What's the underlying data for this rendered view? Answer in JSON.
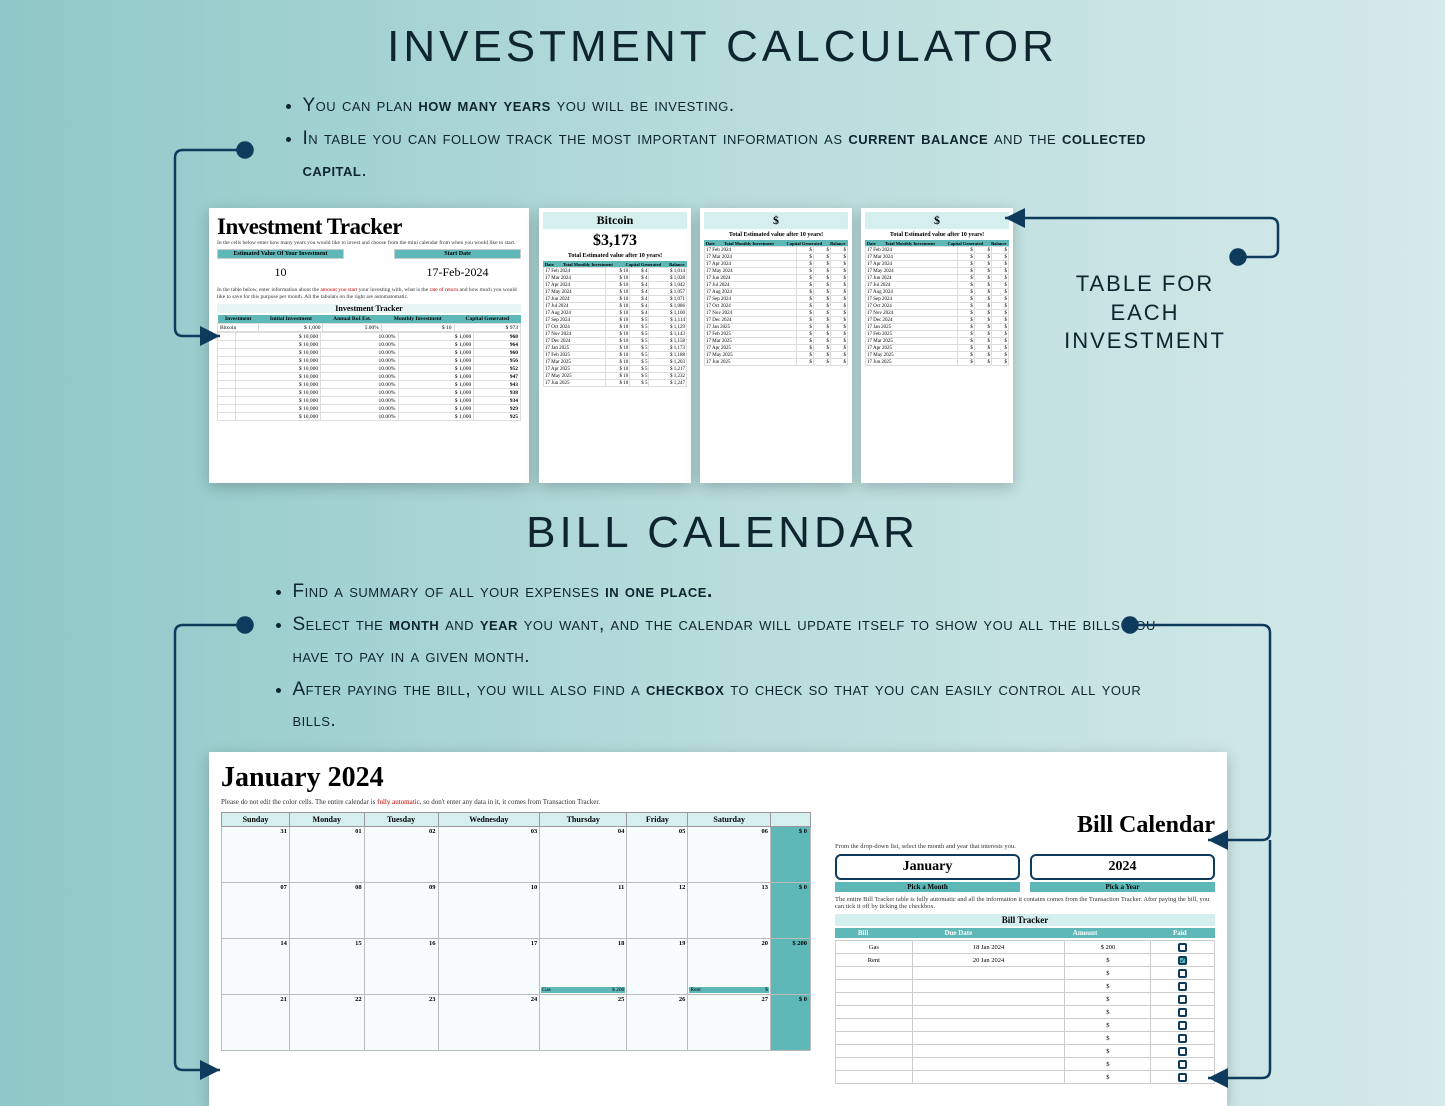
{
  "titles": {
    "investment": "INVESTMENT CALCULATOR",
    "bill": "BILL CALENDAR"
  },
  "bullets_inv": {
    "b1a": "You can plan ",
    "b1b": "how many years",
    "b1c": " you will be investing.",
    "b2a": "In table you can follow track the most important information as ",
    "b2b": "current balance",
    "b2c": " and the ",
    "b2d": "collected capital",
    "b2e": "."
  },
  "bullets_bill": {
    "b1a": "Find a summary of all your expenses ",
    "b1b": "in one place.",
    "b2a": "Select the ",
    "b2b": "month",
    "b2c": " and ",
    "b2d": "year",
    "b2e": " you want, and the calendar will update itself to show you all the bills you have to pay in a given month.",
    "b3a": "After paying the bill, you will also find a ",
    "b3b": "checkbox",
    "b3c": " to check so that you can easily control all your bills."
  },
  "side_label": {
    "l1": "TABLE FOR",
    "l2": "EACH",
    "l3": "INVESTMENT"
  },
  "tracker": {
    "title": "Investment Tracker",
    "desc": "In the cells below enter how many years you would like to invest and choose from the mini calendar from when you would like to start.",
    "est_label": "Estimated Value Of Your Investment",
    "start_label": "Start Date",
    "years": "10",
    "date": "17-Feb-2024",
    "desc2a": "In the table below, enter information about the ",
    "desc2_amount": "amount you start",
    "desc2b": " your investing with, what is the ",
    "desc2_rate": "rate of return",
    "desc2c": " and how much you would like to save for this purpose per month. All the tabulars on the right are automatomatic.",
    "subtitle": "Investment Tracker",
    "headers": {
      "c1": "Investment",
      "c2": "Initial Investment",
      "c3": "Annual RoI Est.",
      "c4": "Monthly Investment",
      "c5": "Capital Generated"
    },
    "row0": {
      "name": "Bitcoin",
      "init": "$   1,000",
      "roi": "5.00%",
      "mon": "$   10",
      "cap": "$   973"
    },
    "rows": [
      {
        "init": "$   10,000",
        "roi": "10.00%",
        "mon": "$   1,000",
        "cap": "968"
      },
      {
        "init": "$   10,000",
        "roi": "10.00%",
        "mon": "$   1,000",
        "cap": "964"
      },
      {
        "init": "$   10,000",
        "roi": "10.00%",
        "mon": "$   1,000",
        "cap": "960"
      },
      {
        "init": "$   10,000",
        "roi": "10.00%",
        "mon": "$   1,000",
        "cap": "956"
      },
      {
        "init": "$   10,000",
        "roi": "10.00%",
        "mon": "$   1,000",
        "cap": "952"
      },
      {
        "init": "$   10,000",
        "roi": "10.00%",
        "mon": "$   1,000",
        "cap": "947"
      },
      {
        "init": "$   10,000",
        "roi": "10.00%",
        "mon": "$   1,000",
        "cap": "943"
      },
      {
        "init": "$   10,000",
        "roi": "10.00%",
        "mon": "$   1,000",
        "cap": "938"
      },
      {
        "init": "$   10,000",
        "roi": "10.00%",
        "mon": "$   1,000",
        "cap": "934"
      },
      {
        "init": "$   10,000",
        "roi": "10.00%",
        "mon": "$   1,000",
        "cap": "929"
      },
      {
        "init": "$   10,000",
        "roi": "10.00%",
        "mon": "$   1,000",
        "cap": "925"
      }
    ]
  },
  "cards": {
    "title1": "Bitcoin",
    "val1": "$3,173",
    "title2": "$",
    "val2": "",
    "title3": "$",
    "val3": "",
    "est": "Total Estimated value after 10 years!",
    "hd": {
      "c1": "Date",
      "c2": "Total Monthly Investment",
      "c3": "Capital Generated",
      "c4": "Balance"
    },
    "rows1": [
      {
        "d": "17 Feb 2024",
        "a": "$   10",
        "b": "$   4",
        "c": "$   1,014"
      },
      {
        "d": "17 Mar 2024",
        "a": "$   10",
        "b": "$   4",
        "c": "$   1,028"
      },
      {
        "d": "17 Apr 2024",
        "a": "$   10",
        "b": "$   4",
        "c": "$   1,042"
      },
      {
        "d": "17 May 2024",
        "a": "$   10",
        "b": "$   4",
        "c": "$   1,057"
      },
      {
        "d": "17 Jun 2024",
        "a": "$   10",
        "b": "$   4",
        "c": "$   1,071"
      },
      {
        "d": "17 Jul 2024",
        "a": "$   10",
        "b": "$   4",
        "c": "$   1,086"
      },
      {
        "d": "17 Aug 2024",
        "a": "$   10",
        "b": "$   4",
        "c": "$   1,100"
      },
      {
        "d": "17 Sep 2024",
        "a": "$   10",
        "b": "$   5",
        "c": "$   1,114"
      },
      {
        "d": "17 Oct 2024",
        "a": "$   10",
        "b": "$   5",
        "c": "$   1,129"
      },
      {
        "d": "17 Nov 2024",
        "a": "$   10",
        "b": "$   5",
        "c": "$   1,143"
      },
      {
        "d": "17 Dec 2024",
        "a": "$   10",
        "b": "$   5",
        "c": "$   1,158"
      },
      {
        "d": "17 Jan 2025",
        "a": "$   10",
        "b": "$   5",
        "c": "$   1,173"
      },
      {
        "d": "17 Feb 2025",
        "a": "$   10",
        "b": "$   5",
        "c": "$   1,188"
      },
      {
        "d": "17 Mar 2025",
        "a": "$   10",
        "b": "$   5",
        "c": "$   1,203"
      },
      {
        "d": "17 Apr 2025",
        "a": "$   10",
        "b": "$   5",
        "c": "$   1,217"
      },
      {
        "d": "17 May 2025",
        "a": "$   10",
        "b": "$   5",
        "c": "$   1,232"
      },
      {
        "d": "17 Jun 2025",
        "a": "$   10",
        "b": "$   5",
        "c": "$   1,247"
      }
    ],
    "rows_empty": [
      {
        "d": "17 Feb 2024"
      },
      {
        "d": "17 Mar 2024"
      },
      {
        "d": "17 Apr 2024"
      },
      {
        "d": "17 May 2024"
      },
      {
        "d": "17 Jun 2024"
      },
      {
        "d": "17 Jul 2024"
      },
      {
        "d": "17 Aug 2024"
      },
      {
        "d": "17 Sep 2024"
      },
      {
        "d": "17 Oct 2024"
      },
      {
        "d": "17 Nov 2024"
      },
      {
        "d": "17 Dec 2024"
      },
      {
        "d": "17 Jan 2025"
      },
      {
        "d": "17 Feb 2025"
      },
      {
        "d": "17 Mar 2025"
      },
      {
        "d": "17 Apr 2025"
      },
      {
        "d": "17 May 2025"
      },
      {
        "d": "17 Jun 2025"
      }
    ]
  },
  "calendar": {
    "title": "January 2024",
    "sm_a": "Please do not edit the color cells. The entire calendar is ",
    "sm_b": "fully automatic",
    "sm_c": ", so don't enter any data in it, it comes from Transaction Tracker.",
    "days": {
      "d0": "Sunday",
      "d1": "Monday",
      "d2": "Tuesday",
      "d3": "Wednesday",
      "d4": "Thursday",
      "d5": "Friday",
      "d6": "Saturday"
    },
    "sums": {
      "r0": "$   0",
      "r1": "$   0",
      "r2": "$   200",
      "r3": "$   0"
    },
    "week0": [
      "31",
      "01",
      "02",
      "03",
      "04",
      "05",
      "06"
    ],
    "week1": [
      "07",
      "08",
      "09",
      "10",
      "11",
      "12",
      "13"
    ],
    "week2": [
      "14",
      "15",
      "16",
      "17",
      "18",
      "19",
      "20"
    ],
    "week3": [
      "21",
      "22",
      "23",
      "24",
      "25",
      "26",
      "27"
    ],
    "gas": {
      "name": "Gas",
      "amt": "$   200"
    },
    "rent": {
      "name": "Rent",
      "amt": "$"
    }
  },
  "billside": {
    "title": "Bill Calendar",
    "sm": "From the drop-down list, select the month and year that interests you.",
    "month": "January",
    "year": "2024",
    "pm": "Pick a Month",
    "py": "Pick a Year",
    "sm2": "The entire Bill Tracker table is fully automatic and all the information it contains comes from the Transaction Tracker. After paying the bill, you can tick it off by ticking the checkbox.",
    "trk": "Bill Tracker",
    "hd": {
      "c1": "Bill",
      "c2": "Due Date",
      "c3": "Amount",
      "c4": "Paid"
    },
    "rows": [
      {
        "b": "Gas",
        "d": "18 Jan 2024",
        "a": "$   200",
        "p": false
      },
      {
        "b": "Rent",
        "d": "20 Jan 2024",
        "a": "$",
        "p": true
      }
    ]
  },
  "colors": {
    "teal": "#5eb8b8",
    "teal_light": "#d5efef",
    "connector": "#0e3b5c",
    "text": "#0e2530"
  }
}
